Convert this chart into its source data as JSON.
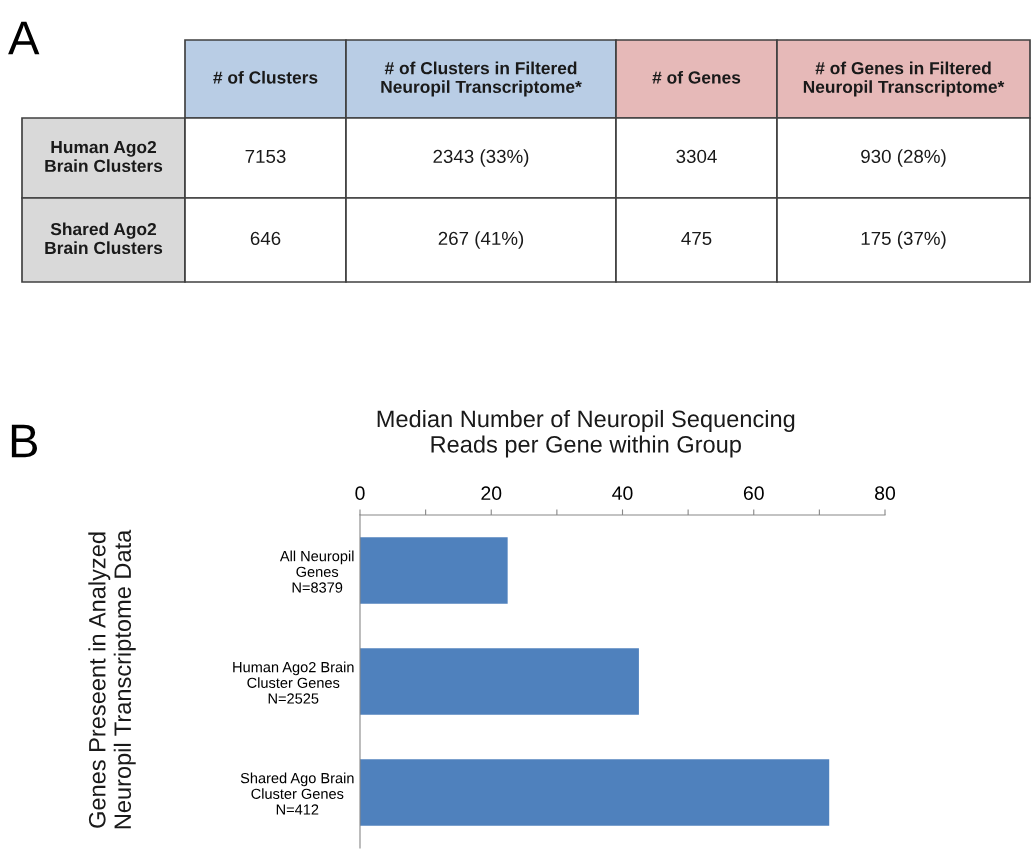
{
  "chart_data": [
    {
      "type": "other",
      "annotations": [
        "A"
      ],
      "categories": [
        "# of Clusters",
        "# of Clusters in Filtered\nNeuropil Transcriptome*",
        "# of Genes",
        "# of Genes in Filtered\nNeuropil Transcriptome*"
      ],
      "colors": [
        "#b9cde5",
        "#b9cde5",
        "#e6b9b8",
        "#e6b9b8"
      ],
      "y_categories": [
        "Human Ago2\nBrain Clusters",
        "Shared Ago2\nBrain Clusters"
      ],
      "cell_labels": [
        [
          "7153",
          "2343 (33%)",
          "3304",
          "930 (28%)"
        ],
        [
          "646",
          "267 (41%)",
          "475",
          "175 (37%)"
        ]
      ]
    },
    {
      "type": "bar",
      "orientation": "horizontal",
      "annotations": [
        "B"
      ],
      "title": "Median Number of Neuropil Sequencing\nReads per Gene within Group",
      "ylabel": "Genes Preseent in Analyzed\nNeuropil Transcriptome Data",
      "categories": [
        "All Neuropil\nGenes\nN=8379",
        "Human Ago2 Brain\nCluster Genes\nN=2525",
        "Shared Ago Brain\nCluster Genes\nN=412"
      ],
      "values": [
        22.5,
        42.5,
        71.5
      ],
      "color": "#4f81bd",
      "xlim": [
        0,
        80
      ],
      "xticks": [
        0,
        {
          "value": 10,
          "label": null
        },
        20,
        {
          "value": 30,
          "label": null
        },
        40,
        {
          "value": 50,
          "label": null
        },
        60,
        {
          "value": 70,
          "label": null
        },
        80
      ],
      "grid": false,
      "legend": false
    }
  ]
}
